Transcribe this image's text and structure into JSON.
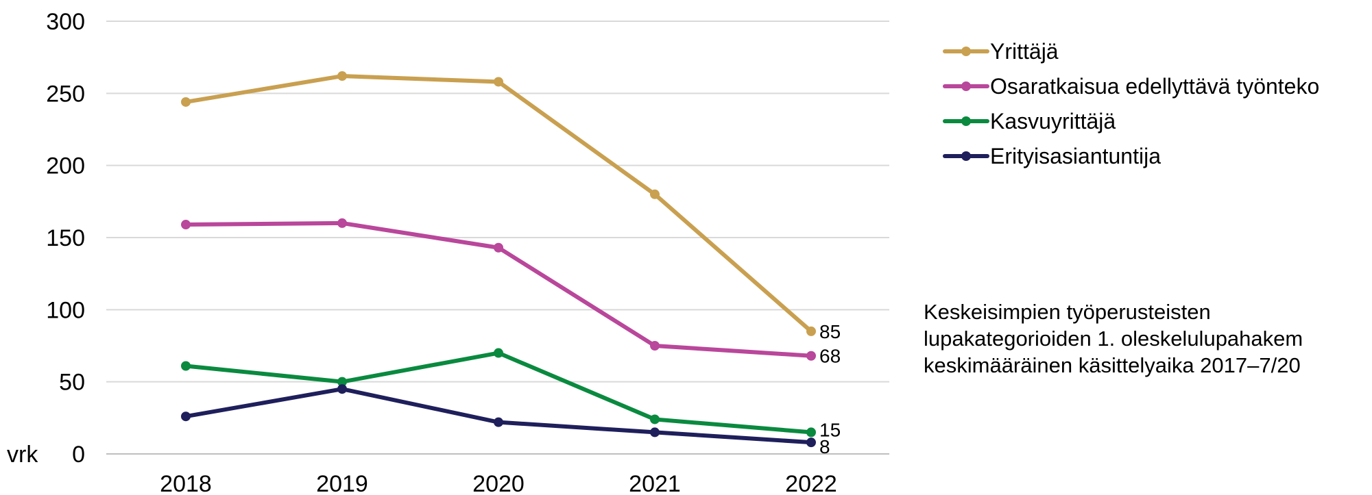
{
  "chart_data": {
    "type": "line",
    "categories": [
      "2018",
      "2019",
      "2020",
      "2021",
      "2022"
    ],
    "ylim": [
      0,
      300
    ],
    "yticks": [
      0,
      50,
      100,
      150,
      200,
      250,
      300
    ],
    "ylabel": "vrk",
    "grid": true,
    "legend_position": "top-right",
    "series": [
      {
        "name": "Yrittäjä",
        "color": "#C9A050",
        "values": [
          244,
          262,
          258,
          180,
          85
        ],
        "end_label": "85"
      },
      {
        "name": "Osaratkaisua edellyttävä työnteko",
        "color": "#B9479B",
        "values": [
          159,
          160,
          143,
          75,
          68
        ],
        "end_label": "68"
      },
      {
        "name": "Kasvuyrittäjä",
        "color": "#0A8A3F",
        "values": [
          61,
          50,
          70,
          24,
          15
        ],
        "end_label": "15"
      },
      {
        "name": "Erityisasiantuntija",
        "color": "#1F1F5C",
        "values": [
          26,
          45,
          22,
          15,
          8
        ],
        "end_label": "8"
      }
    ]
  },
  "caption": {
    "line1": "Keskeisimpien työperusteisten",
    "line2": "lupakategorioiden 1. oleskelulupahakem",
    "line3": "keskimääräinen käsittelyaika 2017–7/20"
  }
}
